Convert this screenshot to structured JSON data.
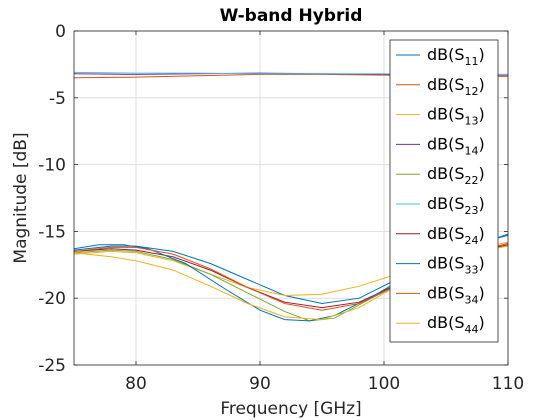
{
  "chart_data": {
    "type": "line",
    "title": "W-band Hybrid",
    "xlabel": "Frequency [GHz]",
    "ylabel": "Magnitude [dB]",
    "xlim": [
      75,
      110
    ],
    "ylim": [
      -25,
      0
    ],
    "xticks": [
      80,
      90,
      100,
      110
    ],
    "yticks": [
      0,
      -5,
      -10,
      -15,
      -20,
      -25
    ],
    "grid": true,
    "legend_position": "top-right",
    "series": [
      {
        "name": "dB(S",
        "sub": "11",
        "color": "#0072BD",
        "x": [
          75,
          78,
          80,
          83,
          86,
          89,
          92,
          95,
          98,
          101,
          104,
          107,
          110
        ],
        "y": [
          -16.4,
          -16.1,
          -16.1,
          -16.5,
          -17.4,
          -18.6,
          -19.8,
          -20.4,
          -20.0,
          -18.6,
          -17.1,
          -16.0,
          -15.3
        ]
      },
      {
        "name": "dB(S",
        "sub": "12",
        "color": "#D95319",
        "x": [
          75,
          80,
          85,
          90,
          95,
          100,
          105,
          110
        ],
        "y": [
          -3.5,
          -3.45,
          -3.35,
          -3.25,
          -3.25,
          -3.3,
          -3.4,
          -3.4
        ]
      },
      {
        "name": "dB(S",
        "sub": "13",
        "color": "#EDB120",
        "x": [
          75,
          78,
          80,
          83,
          86,
          89,
          92,
          95,
          98,
          101,
          104,
          107,
          110
        ],
        "y": [
          -16.7,
          -16.5,
          -16.6,
          -17.2,
          -18.2,
          -19.2,
          -19.8,
          -19.7,
          -19.1,
          -18.2,
          -17.2,
          -16.4,
          -15.8
        ]
      },
      {
        "name": "dB(S",
        "sub": "14",
        "color": "#7E2F8E",
        "x": [
          75,
          80,
          85,
          90,
          95,
          100,
          105,
          110
        ],
        "y": [
          -3.2,
          -3.25,
          -3.2,
          -3.15,
          -3.2,
          -3.25,
          -3.3,
          -3.3
        ]
      },
      {
        "name": "dB(S",
        "sub": "22",
        "color": "#77AC30",
        "x": [
          75,
          78,
          80,
          83,
          86,
          89,
          92,
          94,
          96,
          99,
          102,
          105,
          108,
          110
        ],
        "y": [
          -16.6,
          -16.4,
          -16.5,
          -17.1,
          -18.2,
          -19.6,
          -21.0,
          -21.7,
          -21.5,
          -20.0,
          -18.5,
          -17.2,
          -16.4,
          -16.0
        ]
      },
      {
        "name": "dB(S",
        "sub": "23",
        "color": "#4DBEEE",
        "x": [
          75,
          80,
          85,
          90,
          95,
          100,
          105,
          110
        ],
        "y": [
          -3.1,
          -3.15,
          -3.15,
          -3.2,
          -3.2,
          -3.2,
          -3.25,
          -3.25
        ]
      },
      {
        "name": "dB(S",
        "sub": "24",
        "color": "#A2142F",
        "x": [
          75,
          78,
          80,
          83,
          86,
          89,
          92,
          95,
          98,
          101,
          104,
          107,
          110
        ],
        "y": [
          -16.5,
          -16.3,
          -16.4,
          -16.9,
          -17.9,
          -19.2,
          -20.3,
          -20.7,
          -20.3,
          -19.0,
          -17.6,
          -16.6,
          -16.0
        ]
      },
      {
        "name": "dB(S",
        "sub": "33",
        "color": "#0072BD",
        "x": [
          75,
          77,
          79,
          81,
          84,
          87,
          90,
          92,
          94,
          96,
          99,
          102,
          106,
          110
        ],
        "y": [
          -16.3,
          -16.0,
          -16.0,
          -16.3,
          -17.4,
          -19.2,
          -20.9,
          -21.6,
          -21.7,
          -21.3,
          -19.9,
          -18.3,
          -16.5,
          -15.2
        ]
      },
      {
        "name": "dB(S",
        "sub": "34",
        "color": "#D95319",
        "x": [
          75,
          78,
          80,
          83,
          86,
          89,
          92,
          95,
          98,
          101,
          104,
          107,
          110
        ],
        "y": [
          -16.5,
          -16.2,
          -16.2,
          -16.7,
          -17.8,
          -19.2,
          -20.4,
          -20.9,
          -20.4,
          -19.1,
          -17.7,
          -16.6,
          -15.9
        ]
      },
      {
        "name": "dB(S",
        "sub": "44",
        "color": "#EDB120",
        "x": [
          75,
          78,
          80,
          83,
          86,
          89,
          92,
          95,
          98,
          101,
          104,
          107,
          110
        ],
        "y": [
          -16.6,
          -16.9,
          -17.2,
          -17.9,
          -19.1,
          -20.4,
          -21.4,
          -21.6,
          -20.7,
          -19.1,
          -17.6,
          -16.6,
          -16.1
        ]
      }
    ]
  }
}
